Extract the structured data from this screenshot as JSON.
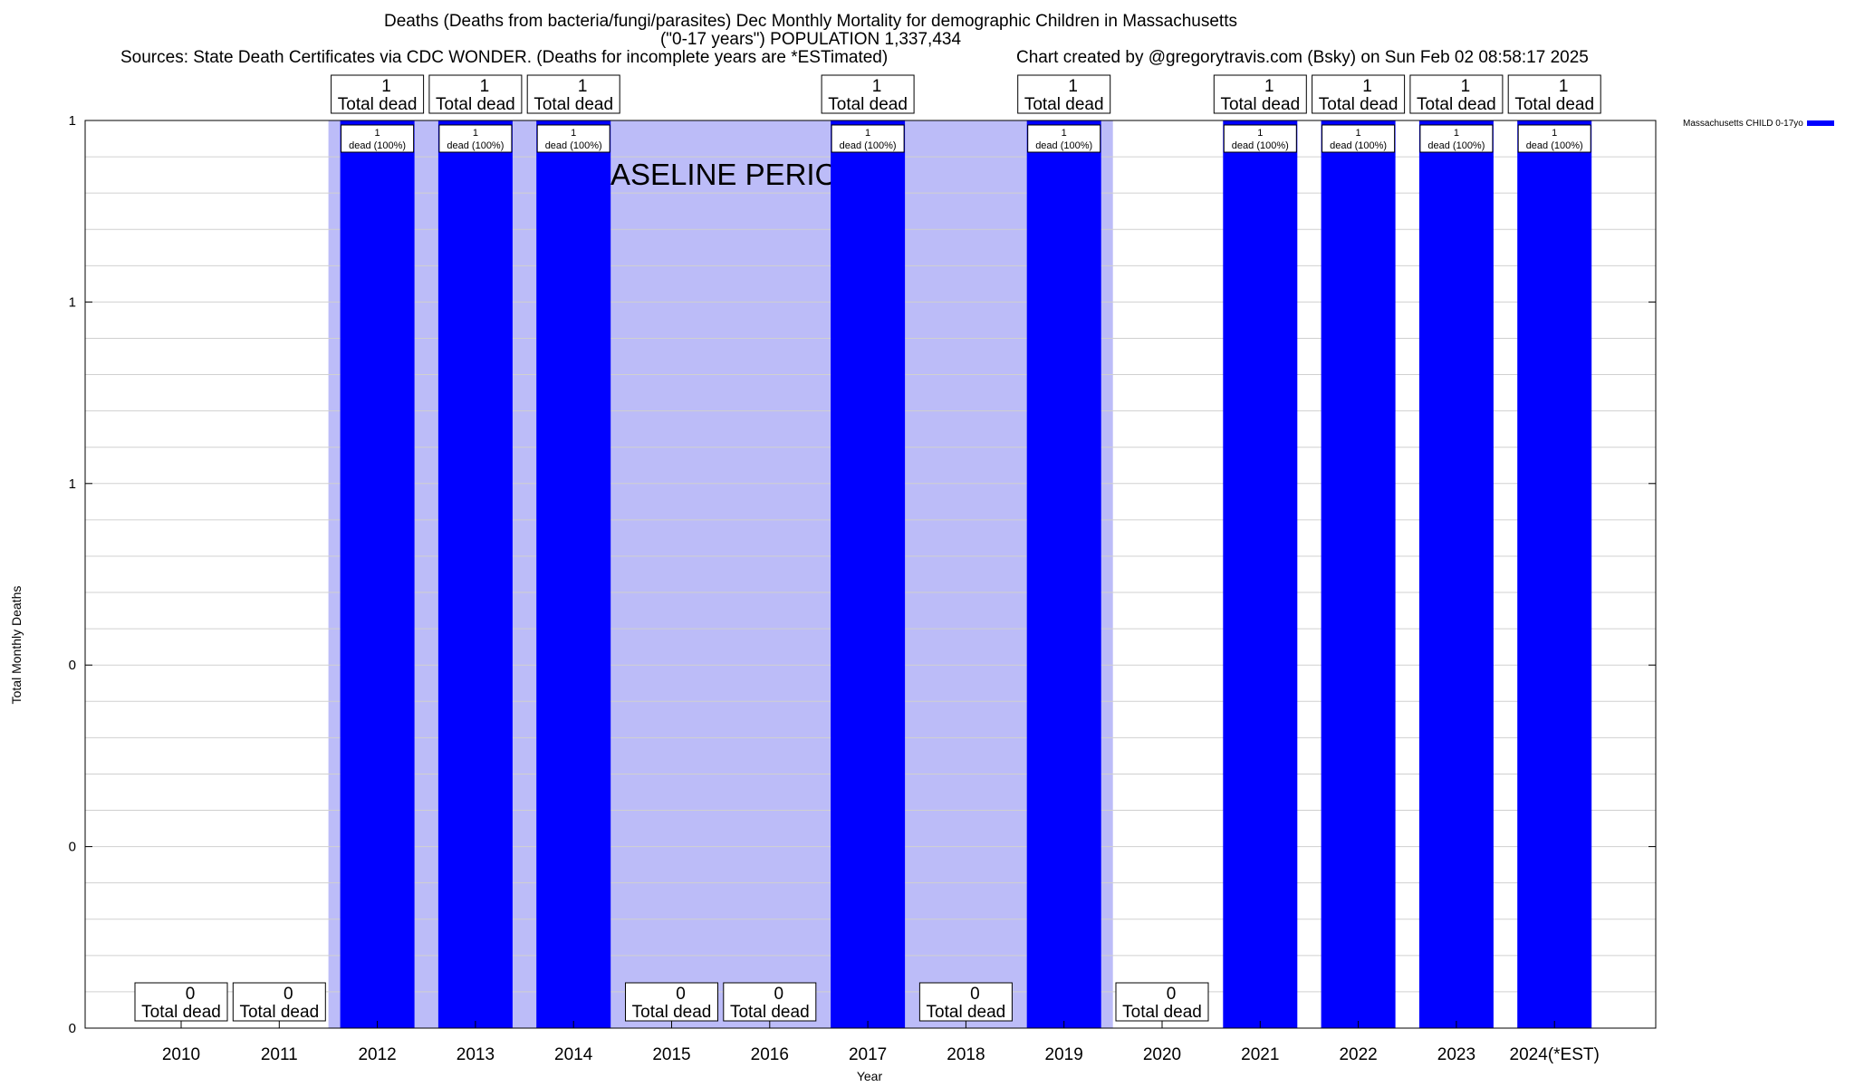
{
  "header": {
    "title_line1": "Deaths (Deaths from bacteria/fungi/parasites) Dec Monthly Mortality for demographic Children in Massachusetts",
    "title_line2": "(\"0-17 years\") POPULATION 1,337,434",
    "sources": "Sources: State Death Certificates via CDC WONDER. (Deaths for incomplete years are *ESTimated)",
    "credit": "Chart created by @gregorytravis.com (Bsky) on Sun Feb 02 08:58:17 2025"
  },
  "chart_data": {
    "type": "bar",
    "xlabel": "Year",
    "ylabel": "Total Monthly Deaths",
    "ylim": [
      0,
      1
    ],
    "ytick_values": [
      0,
      0.2,
      0.4,
      0.6,
      0.8,
      1.0
    ],
    "ytick_labels": [
      "0",
      "0",
      "0",
      "1",
      "1",
      "1"
    ],
    "grid": true,
    "legend_position": "top-right (outside plot)",
    "categories": [
      "2010",
      "2011",
      "2012",
      "2013",
      "2014",
      "2015",
      "2016",
      "2017",
      "2018",
      "2019",
      "2020",
      "2021",
      "2022",
      "2023",
      "2024(*EST)"
    ],
    "series": [
      {
        "name": "Massachusetts CHILD 0-17yo",
        "color": "#0000ff",
        "values": [
          0,
          0,
          1,
          1,
          1,
          0,
          0,
          1,
          0,
          1,
          0,
          1,
          1,
          1,
          1
        ]
      }
    ],
    "total_label_values": [
      "0",
      "0",
      "1",
      "1",
      "1",
      "0",
      "0",
      "1",
      "0",
      "1",
      "0",
      "1",
      "1",
      "1",
      "1"
    ],
    "total_label_suffix": "Total dead",
    "inner_label_top": "1",
    "inner_label_bottom": "dead (100%)",
    "baseline_label": "BASELINE PERIOD",
    "baseline_range": [
      "2012",
      "2019"
    ],
    "baseline_color": "#bcbcf8",
    "bar_color": "#0000ff"
  }
}
